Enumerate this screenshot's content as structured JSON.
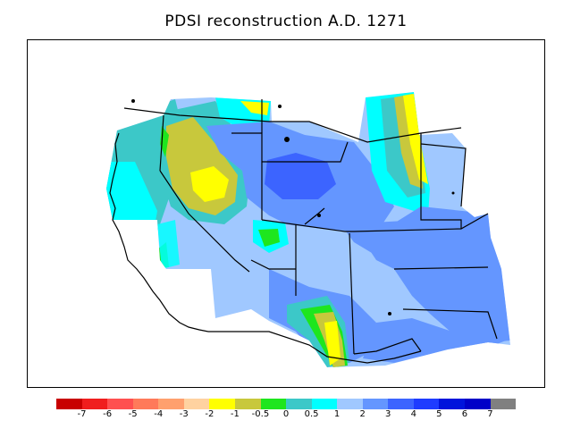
{
  "title": "PDSI reconstruction A.D. 1271",
  "legend": {
    "colors": [
      "#c80000",
      "#f01e1e",
      "#ff5050",
      "#ff7a5a",
      "#ffa06e",
      "#ffd2a0",
      "#ffff00",
      "#c8c83c",
      "#1ee61e",
      "#3cc8c8",
      "#00ffff",
      "#a0c8ff",
      "#6496ff",
      "#3c64ff",
      "#1e3cff",
      "#0014dc",
      "#0000c8",
      "#808080"
    ],
    "tick_labels": [
      "-7",
      "-6",
      "-5",
      "-4",
      "-3",
      "-2",
      "-1",
      "-0.5",
      "0",
      "0.5",
      "1",
      "2",
      "3",
      "4",
      "5",
      "6",
      "7"
    ]
  },
  "map": {
    "region": "Western United States",
    "palette": {
      "dark_blue": "#3c64ff",
      "mid_blue": "#6496ff",
      "light_blue": "#a0c8ff",
      "cyan": "#00ffff",
      "teal": "#3cc8c8",
      "green": "#1ee61e",
      "olive": "#c8c83c",
      "yellow": "#ffff00"
    }
  }
}
